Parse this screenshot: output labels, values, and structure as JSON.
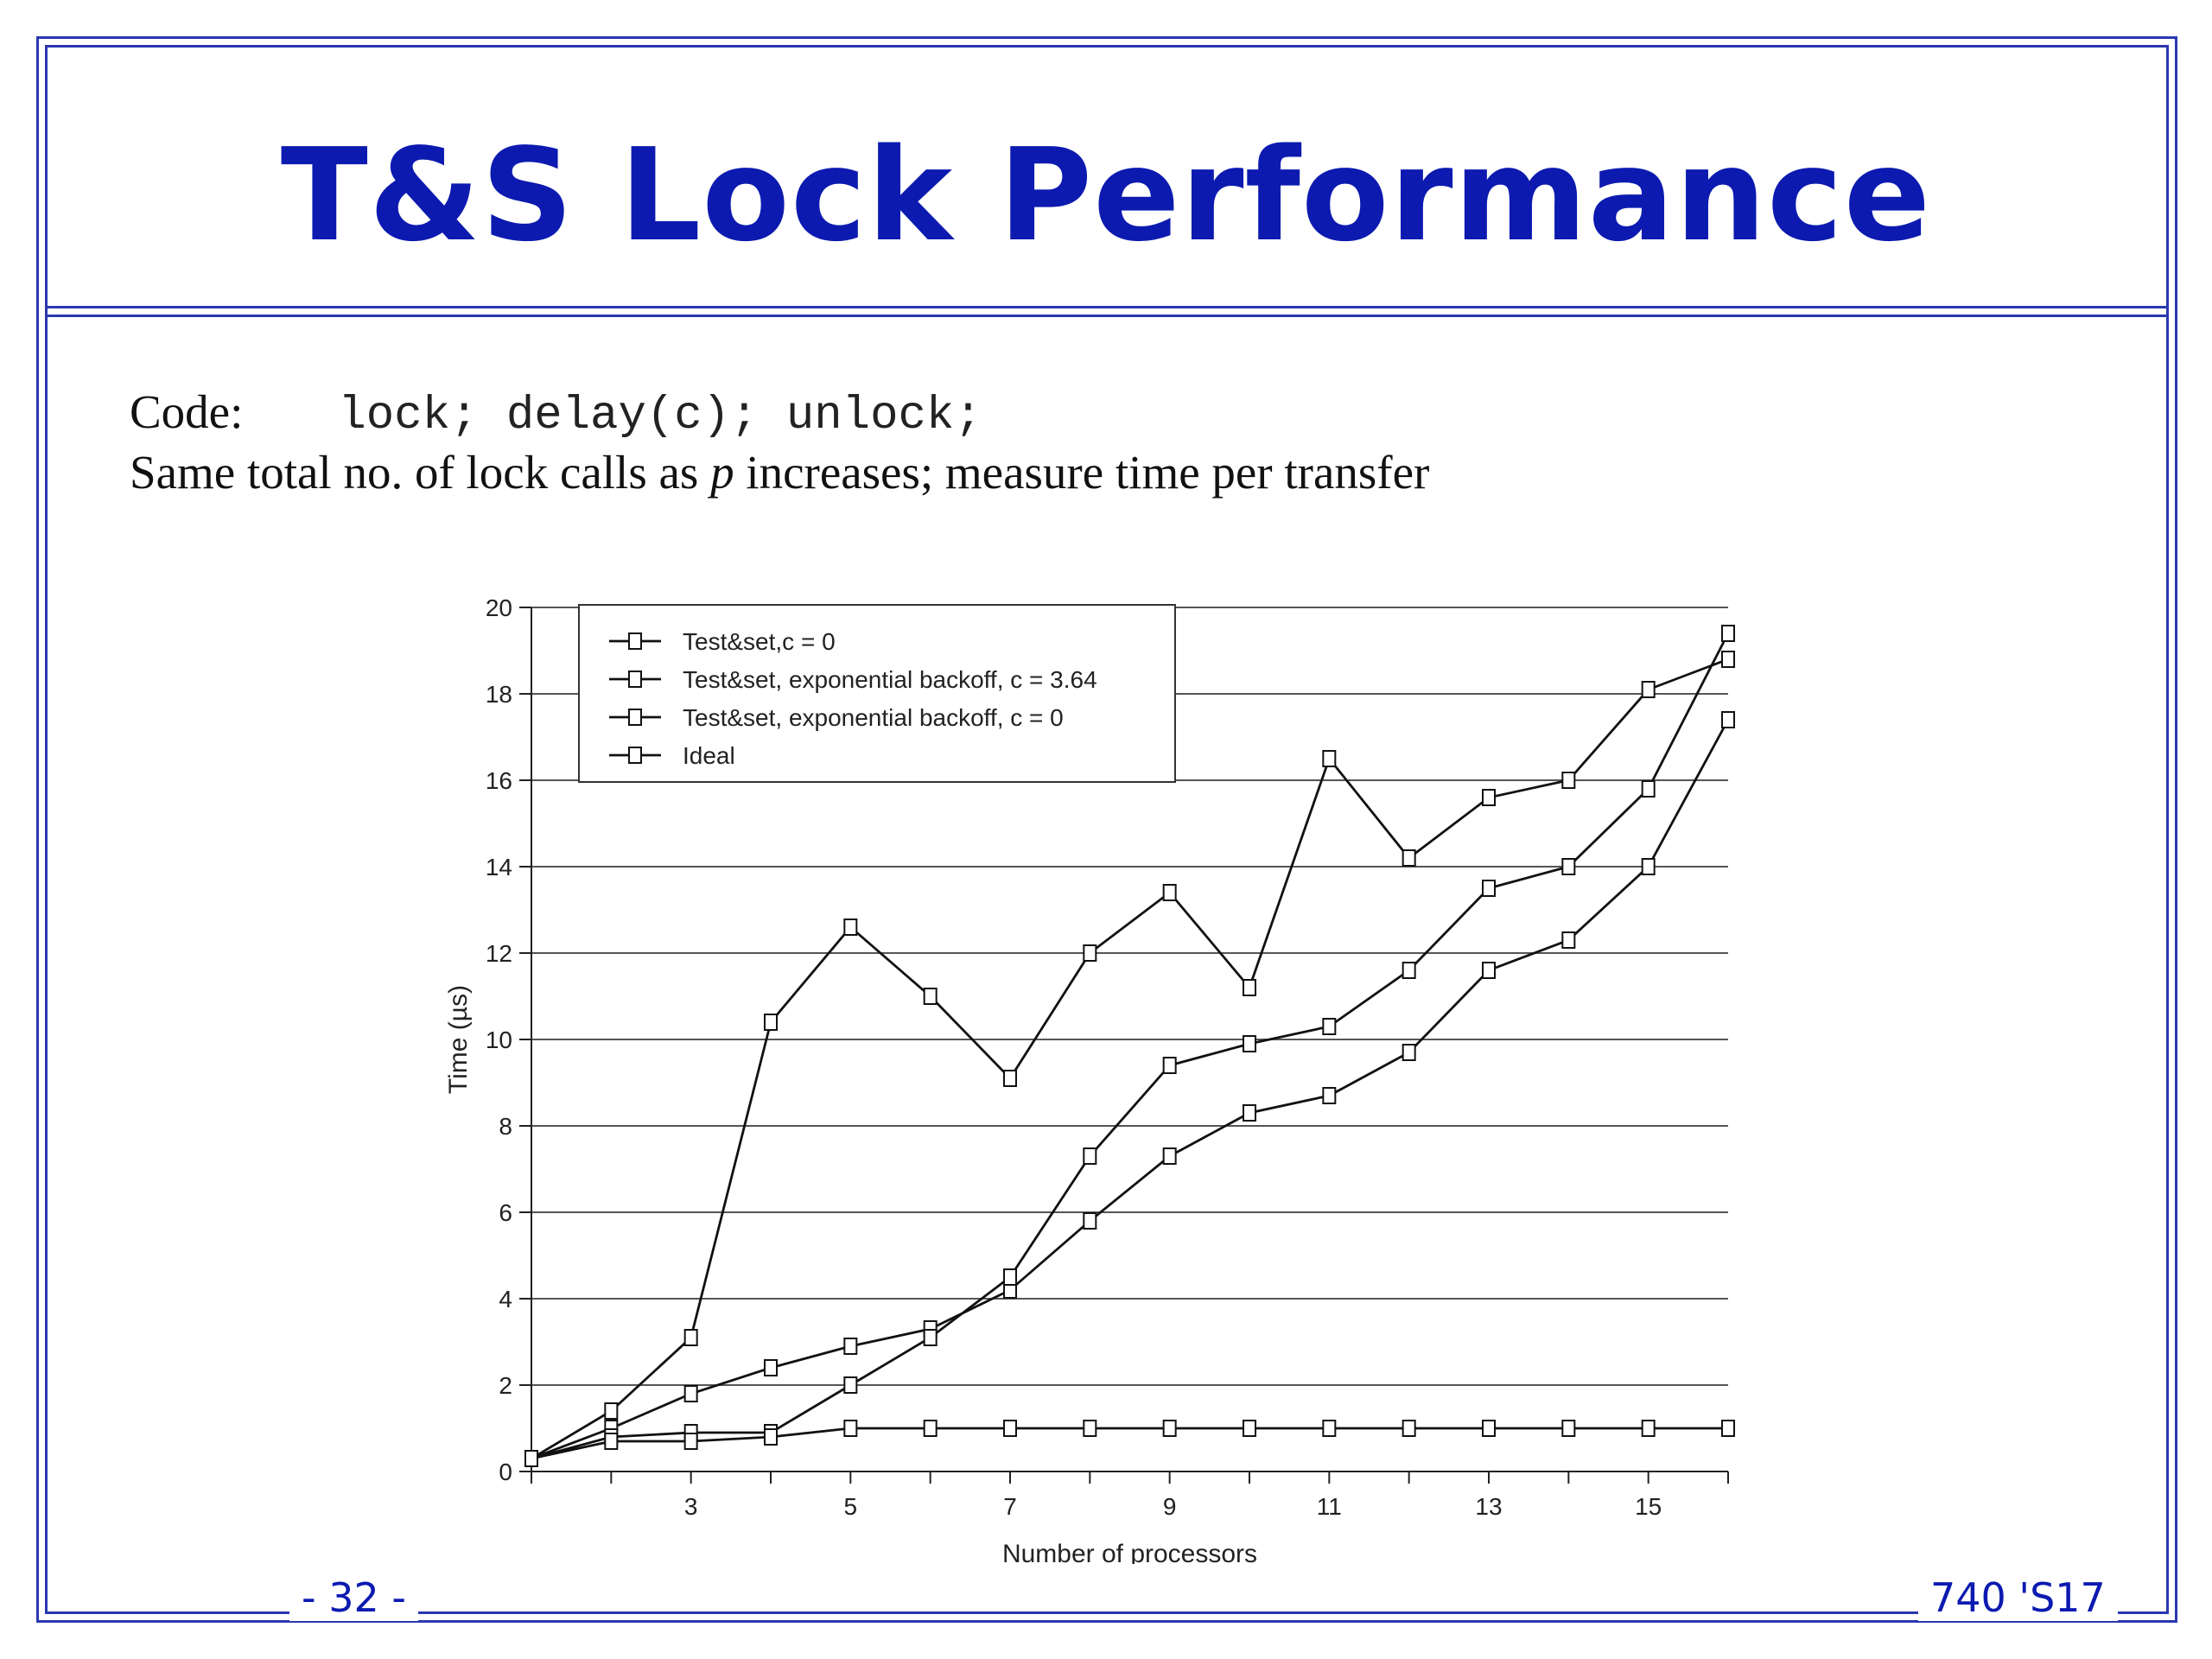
{
  "slide": {
    "title": "T&S Lock Performance",
    "code_label": "Code:",
    "code_text": "lock; delay(c); unlock;",
    "desc_before": "Same total no. of lock calls as ",
    "desc_var": "p",
    "desc_after": " increases; measure time per transfer",
    "footer_left": "- 32 -",
    "footer_right": "740 'S17",
    "accent_color": "#0c1ab0"
  },
  "chart_data": {
    "type": "line",
    "xlabel": "Number of processors",
    "ylabel": "Time (µs)",
    "xlim": [
      1,
      16
    ],
    "ylim": [
      0,
      20
    ],
    "xticks": [
      3,
      5,
      7,
      9,
      11,
      13,
      15
    ],
    "yticks": [
      0,
      2,
      4,
      6,
      8,
      10,
      12,
      14,
      16,
      18,
      20
    ],
    "grid": "horizontal",
    "legend_position": "top-left",
    "marker": "square",
    "x": [
      1,
      2,
      3,
      4,
      5,
      6,
      7,
      8,
      9,
      10,
      11,
      12,
      13,
      14,
      15,
      16
    ],
    "series": [
      {
        "name": "Test&set,c = 0",
        "values": [
          0.3,
          1.4,
          3.1,
          10.4,
          12.6,
          11.0,
          9.1,
          12.0,
          13.4,
          11.2,
          16.5,
          14.2,
          15.6,
          16.0,
          18.1,
          18.8
        ]
      },
      {
        "name": "Test&set, exponential backoff, c = 3.64",
        "values": [
          0.3,
          1.0,
          1.8,
          2.4,
          2.9,
          3.3,
          4.2,
          5.8,
          7.3,
          8.3,
          8.7,
          9.7,
          11.6,
          12.3,
          14.0,
          17.4
        ]
      },
      {
        "name": "Test&set, exponential backoff, c = 0",
        "values": [
          0.3,
          0.8,
          0.9,
          0.9,
          2.0,
          3.1,
          4.5,
          7.3,
          9.4,
          9.9,
          10.3,
          11.6,
          13.5,
          14.0,
          15.8,
          19.4
        ]
      },
      {
        "name": "Ideal",
        "values": [
          0.3,
          0.7,
          0.7,
          0.8,
          1.0,
          1.0,
          1.0,
          1.0,
          1.0,
          1.0,
          1.0,
          1.0,
          1.0,
          1.0,
          1.0,
          1.0
        ]
      }
    ]
  }
}
